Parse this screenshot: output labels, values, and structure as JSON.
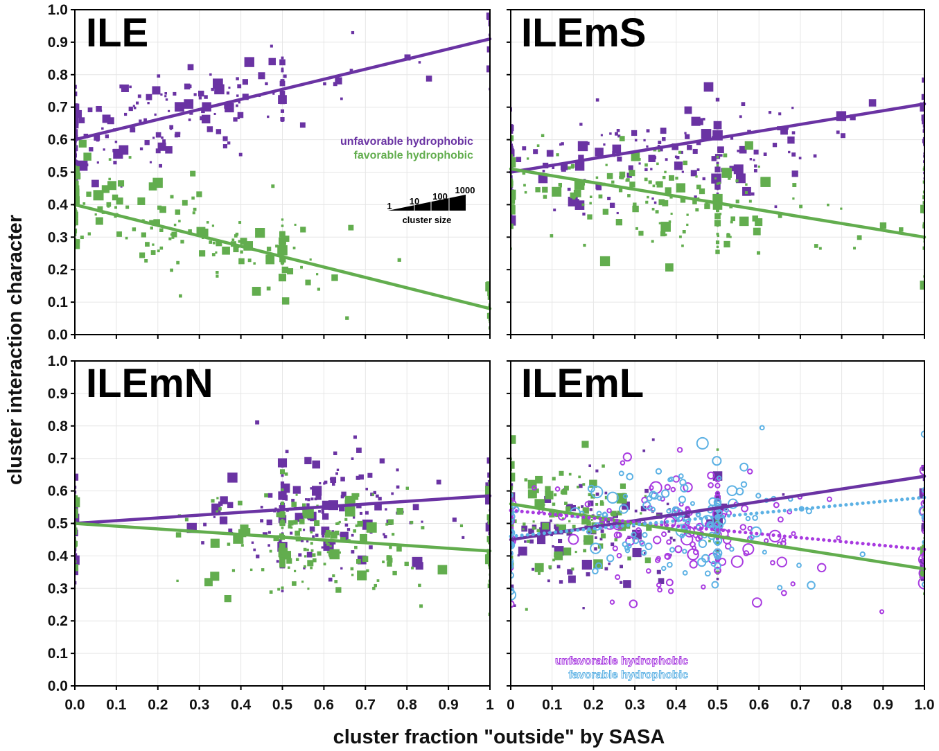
{
  "colors": {
    "unfavorable": "#6a33a3",
    "favorable": "#62ad4e",
    "unfavorable_alt": "#a83ae0",
    "favorable_alt": "#5cb1e4",
    "grid": "#e6e6e6",
    "axis": "#000000"
  },
  "chart_data": {
    "type": "scatter",
    "ylabel": "cluster interaction character",
    "xlabel": "cluster fraction \"outside\" by SASA",
    "ylim": [
      0,
      1
    ],
    "xlim": [
      0,
      1
    ],
    "y_ticks": [
      "0.0",
      "0.1",
      "0.2",
      "0.3",
      "0.4",
      "0.5",
      "0.6",
      "0.7",
      "0.8",
      "0.9",
      "1.0"
    ],
    "x_ticks_left": [
      "0.0",
      "0.1",
      "0.2",
      "0.3",
      "0.4",
      "0.5",
      "0.6",
      "0.7",
      "0.8",
      "0.9",
      "1"
    ],
    "x_ticks_right": [
      "0",
      "0.1",
      "0.2",
      "0.3",
      "0.4",
      "0.5",
      "0.6",
      "0.7",
      "0.8",
      "0.9",
      "1.0"
    ],
    "size_legend": {
      "title": "cluster size",
      "labels": [
        "1",
        "10",
        "100",
        "1000"
      ]
    },
    "panels": [
      {
        "title": "ILE",
        "legend": [
          "unfavorable hydrophobic",
          "favorable hydrophobic"
        ],
        "series": [
          {
            "name": "unfavorable hydrophobic",
            "marker": "square",
            "fit": {
              "y0": 0.6,
              "y1": 0.91
            },
            "center": [
              0.22,
              0.7
            ],
            "spread": [
              0.22,
              0.07
            ]
          },
          {
            "name": "favorable hydrophobic",
            "marker": "square",
            "fit": {
              "y0": 0.4,
              "y1": 0.08
            },
            "center": [
              0.22,
              0.32
            ],
            "spread": [
              0.22,
              0.07
            ]
          }
        ]
      },
      {
        "title": "ILEmS",
        "legend": [],
        "series": [
          {
            "name": "unfavorable hydrophobic",
            "marker": "square",
            "fit": {
              "y0": 0.5,
              "y1": 0.71
            },
            "center": [
              0.35,
              0.55
            ],
            "spread": [
              0.2,
              0.08
            ]
          },
          {
            "name": "favorable hydrophobic",
            "marker": "square",
            "fit": {
              "y0": 0.51,
              "y1": 0.3
            },
            "center": [
              0.35,
              0.4
            ],
            "spread": [
              0.2,
              0.08
            ]
          }
        ]
      },
      {
        "title": "ILEmN",
        "legend": [],
        "series": [
          {
            "name": "unfavorable hydrophobic",
            "marker": "square",
            "fit": {
              "y0": 0.5,
              "y1": 0.585
            },
            "center": [
              0.6,
              0.52
            ],
            "spread": [
              0.12,
              0.09
            ]
          },
          {
            "name": "favorable hydrophobic",
            "marker": "square",
            "fit": {
              "y0": 0.5,
              "y1": 0.415
            },
            "center": [
              0.58,
              0.45
            ],
            "spread": [
              0.14,
              0.08
            ]
          }
        ]
      },
      {
        "title": "ILEmL",
        "legend": [
          "unfavorable hydrophobic",
          "favorable hydrophobic"
        ],
        "series": [
          {
            "name": "unfavorable hydrophobic",
            "marker": "square",
            "fit": {
              "y0": 0.45,
              "y1": 0.645
            },
            "center": [
              0.2,
              0.47
            ],
            "spread": [
              0.12,
              0.08
            ]
          },
          {
            "name": "favorable hydrophobic",
            "marker": "square",
            "fit": {
              "y0": 0.56,
              "y1": 0.36
            },
            "center": [
              0.15,
              0.53
            ],
            "spread": [
              0.1,
              0.09
            ]
          },
          {
            "name": "unfavorable hydrophobic (alt)",
            "marker": "circle",
            "dotted": true,
            "fit": {
              "y0": 0.54,
              "y1": 0.42
            },
            "center": [
              0.42,
              0.48
            ],
            "spread": [
              0.15,
              0.1
            ]
          },
          {
            "name": "favorable hydrophobic (alt)",
            "marker": "circle",
            "dotted": true,
            "fit": {
              "y0": 0.46,
              "y1": 0.58
            },
            "center": [
              0.42,
              0.52
            ],
            "spread": [
              0.15,
              0.1
            ]
          }
        ]
      }
    ]
  }
}
